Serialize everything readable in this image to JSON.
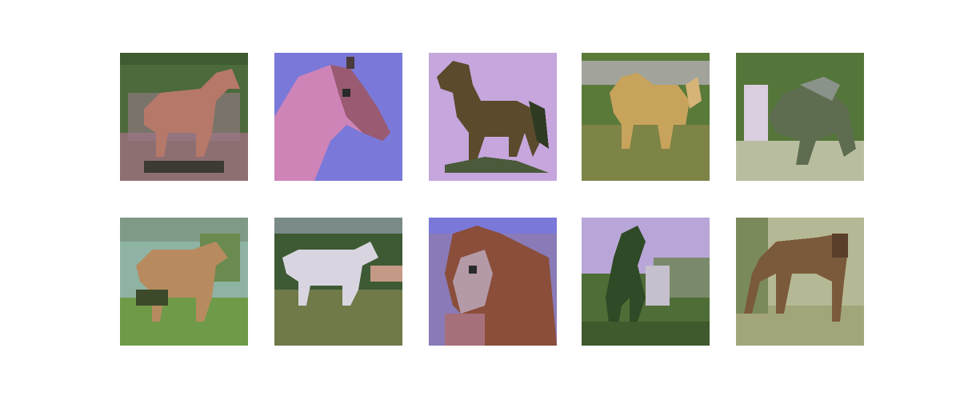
{
  "grid": {
    "rows": 2,
    "cols": 5,
    "images": [
      {
        "subject": "horse",
        "background": "#4c6a3c",
        "subject_color": "#b67868",
        "ground": "#8d6f72"
      },
      {
        "subject": "horse-head",
        "background": "#7a78d8",
        "subject_color": "#cf84b8",
        "ground": "#7a78d8"
      },
      {
        "subject": "horse",
        "background": "#c6a6dc",
        "subject_color": "#5b4a2c",
        "ground": "#c6a6dc"
      },
      {
        "subject": "horse",
        "background": "#5a7a3a",
        "subject_color": "#c8a35c",
        "ground": "#7d8446"
      },
      {
        "subject": "horse",
        "background": "#55763a",
        "subject_color": "#5e6d50",
        "ground": "#b9bda0"
      },
      {
        "subject": "horse",
        "background": "#8fb3a3",
        "subject_color": "#b78b5f",
        "ground": "#6f9a48"
      },
      {
        "subject": "horse",
        "background": "#3d5a34",
        "subject_color": "#d9d5e0",
        "ground": "#6f7a48"
      },
      {
        "subject": "horse-head",
        "background": "#8a7ab8",
        "subject_color": "#8a4e3a",
        "ground": "#a5707a"
      },
      {
        "subject": "horse",
        "background": "#b9a6d8",
        "subject_color": "#2f4a26",
        "ground": "#4f6d36"
      },
      {
        "subject": "horse",
        "background": "#b5b894",
        "subject_color": "#7a5a3a",
        "ground": "#a2a57a"
      }
    ]
  }
}
